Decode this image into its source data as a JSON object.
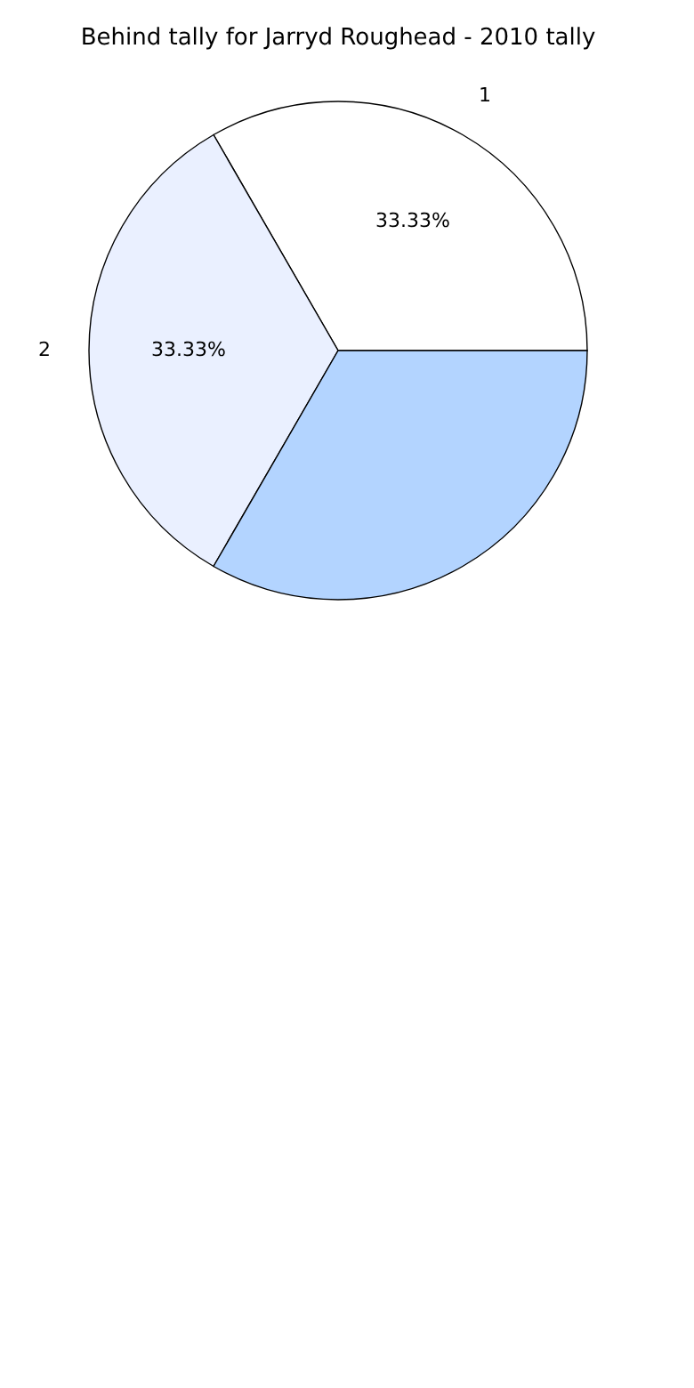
{
  "chart_data": {
    "type": "pie",
    "title": "Behind tally for Jarryd Roughead - 2010 tally",
    "categories": [
      "1",
      "2",
      null
    ],
    "values": [
      33.33,
      33.33,
      33.33
    ],
    "colors": [
      "#ffffff",
      "#eaf0ff",
      "#b3d4ff"
    ],
    "value_labels": [
      "33.33%",
      "33.33%",
      null
    ],
    "legend": false
  }
}
